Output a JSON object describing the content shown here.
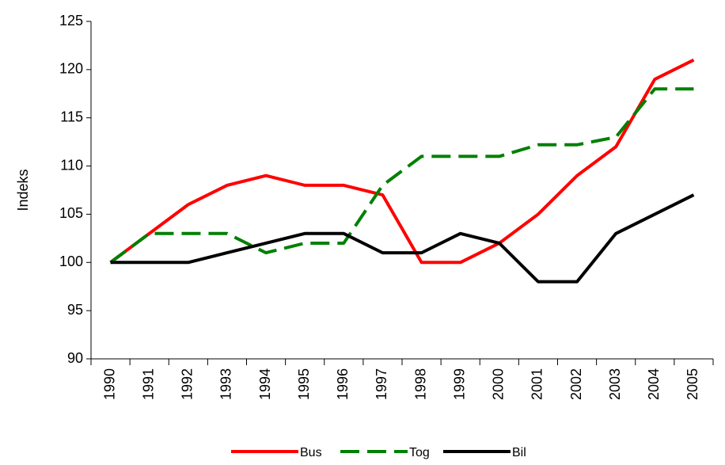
{
  "chart_data": {
    "type": "line",
    "y_label": "Indeks",
    "categories": [
      "1990",
      "1991",
      "1992",
      "1993",
      "1994",
      "1995",
      "1996",
      "1997",
      "1998",
      "1999",
      "2000",
      "2001",
      "2002",
      "2003",
      "2004",
      "2005"
    ],
    "series": [
      {
        "name": "Bus",
        "color": "#ff0000",
        "dash": false,
        "values": [
          100,
          103,
          106,
          108,
          109,
          108,
          108,
          107,
          100,
          100,
          102,
          105,
          109,
          112,
          119,
          121
        ]
      },
      {
        "name": "Tog",
        "color": "#008000",
        "dash": true,
        "values": [
          100,
          103,
          103,
          103,
          101,
          102,
          102,
          108,
          111,
          111,
          111,
          112.2,
          112.2,
          113,
          118,
          118
        ]
      },
      {
        "name": "Bil",
        "color": "#000000",
        "dash": false,
        "values": [
          100,
          100,
          100,
          101,
          102,
          103,
          103,
          101,
          101,
          103,
          102,
          98,
          98,
          103,
          105,
          107
        ]
      }
    ],
    "ylim": [
      90,
      125
    ],
    "yticks": [
      90,
      95,
      100,
      105,
      110,
      115,
      120,
      125
    ],
    "grid": false
  }
}
